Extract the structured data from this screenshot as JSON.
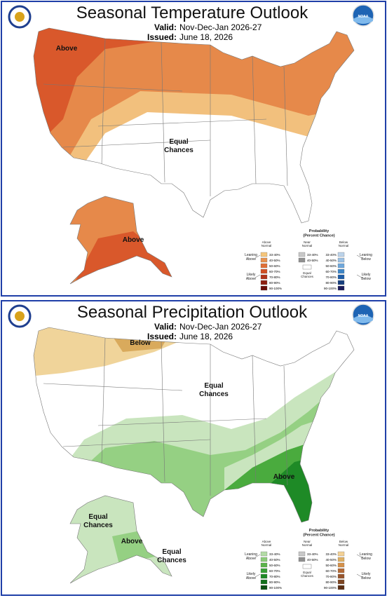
{
  "panels": [
    {
      "title": "Seasonal Temperature Outlook",
      "valid_label": "Valid:",
      "valid": "Nov-Dec-Jan 2026-27",
      "issued_label": "Issued:",
      "issued": "June 18, 2026",
      "logo": "NOAA",
      "labels": [
        [
          "Above"
        ],
        [
          "Equal",
          "Chances"
        ],
        [
          "Above"
        ]
      ],
      "legend": {
        "title": [
          "Probability",
          "(Percent Chance)"
        ],
        "above": [
          "Above",
          "Normal"
        ],
        "near": [
          "Near",
          "Normal"
        ],
        "below": [
          "Below",
          "Normal"
        ],
        "ranges": [
          "33-40%",
          "40-50%",
          "50-60%",
          "60-70%",
          "70-80%",
          "80-90%",
          "90-100%"
        ],
        "near_ranges": [
          "33-40%",
          "40-50%"
        ],
        "equal": [
          "Equal",
          "Chances"
        ],
        "lean_above": [
          "Leaning",
          "Above"
        ],
        "likely_above": [
          "Likely",
          "Above"
        ],
        "lean_below": [
          "Leaning",
          "Below"
        ],
        "likely_below": [
          "Likely",
          "Below"
        ]
      }
    },
    {
      "title": "Seasonal Precipitation Outlook",
      "valid_label": "Valid:",
      "valid": "Nov-Dec-Jan 2026-27",
      "issued_label": "Issued:",
      "issued": "June 18, 2026",
      "logo": "NOAA",
      "labels": [
        [
          "Below"
        ],
        [
          "Equal",
          "Chances"
        ],
        [
          "Above"
        ],
        [
          "Equal",
          "Chances"
        ],
        [
          "Above"
        ],
        [
          "Equal",
          "Chances"
        ]
      ],
      "legend": {
        "title": [
          "Probability",
          "(Percent Chance)"
        ],
        "above": [
          "Above",
          "Normal"
        ],
        "near": [
          "Near",
          "Normal"
        ],
        "below": [
          "Below",
          "Normal"
        ],
        "ranges": [
          "33-40%",
          "40-50%",
          "50-60%",
          "60-70%",
          "70-80%",
          "80-90%",
          "90-100%"
        ],
        "near_ranges": [
          "33-40%",
          "40-50%"
        ],
        "equal": [
          "Equal",
          "Chances"
        ],
        "lean_above": [
          "Leaning",
          "Above"
        ],
        "likely_above": [
          "Likely",
          "Above"
        ],
        "lean_below": [
          "Leaning",
          "Below"
        ],
        "likely_below": [
          "Likely",
          "Below"
        ]
      }
    }
  ]
}
